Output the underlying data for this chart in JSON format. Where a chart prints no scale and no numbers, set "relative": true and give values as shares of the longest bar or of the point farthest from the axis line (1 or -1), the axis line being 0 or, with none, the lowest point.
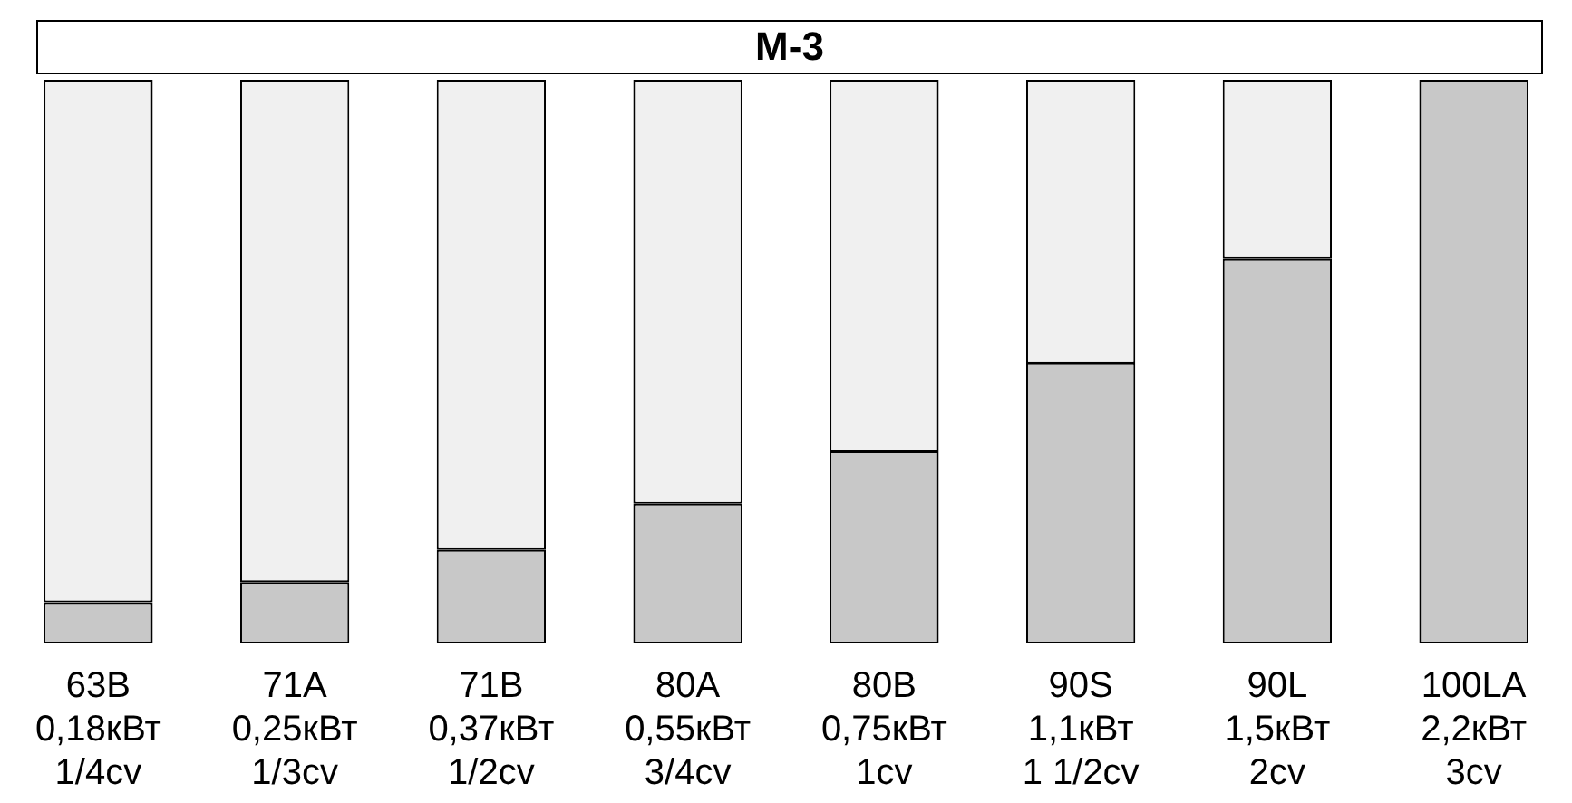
{
  "chart_data": {
    "type": "bar",
    "title": "М-3",
    "relative": true,
    "stacked": true,
    "categories": [
      "63B\n0,18кВт\n1/4cv",
      "71A\n0,25кВт\n1/3cv",
      "71B\n0,37кВт\n1/2cv",
      "80A\n0,55кВт\n3/4cv",
      "80B\n0,75кВт\n1cv",
      "90S\n1,1кВт\n1 1/2cv",
      "90L\n1,5кВт\n2cv",
      "100LA\n2,2кВт\n3cv"
    ],
    "series": [
      {
        "color": "#c8c8c8",
        "values": [
          0.073,
          0.109,
          0.166,
          0.248,
          0.341,
          0.497,
          0.682,
          1
        ]
      },
      {
        "color": "#f0f0f0",
        "values": [
          0.927,
          0.891,
          0.834,
          0.752,
          0.659,
          0.503,
          0.318,
          0
        ]
      }
    ]
  }
}
